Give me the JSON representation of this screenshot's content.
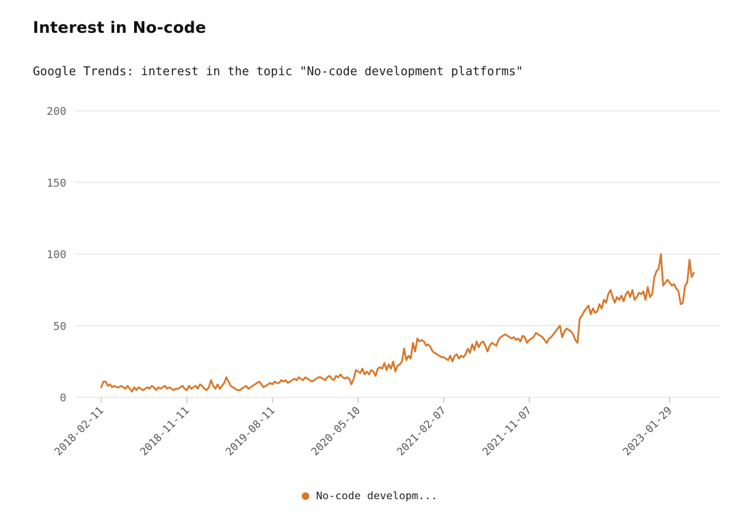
{
  "title": "Interest in No-code",
  "subtitle": "Google Trends: interest in the topic \"No-code development platforms\"",
  "legend": {
    "label": "No-code developm..."
  },
  "colors": {
    "line": "#d97628",
    "grid": "#dcdcdc",
    "tick": "#666666"
  },
  "chart_data": {
    "type": "line",
    "title": "Interest in No-code",
    "subtitle": "Google Trends: interest in the topic \"No-code development platforms\"",
    "xlabel": "",
    "ylabel": "",
    "ylim": [
      0,
      200
    ],
    "yticks": [
      0,
      50,
      100,
      150,
      200
    ],
    "xticks": [
      "2018-02-11",
      "2018-11-11",
      "2019-08-11",
      "2020-05-10",
      "2021-02-07",
      "2021-11-07",
      "2023-01-29"
    ],
    "grid": true,
    "legend_position": "bottom",
    "series": [
      {
        "name": "No-code developm...",
        "x_start": "2018-02-11",
        "x_step_days": 7,
        "values": [
          7,
          11,
          11,
          8,
          9,
          7,
          8,
          7,
          7,
          8,
          7,
          6,
          8,
          6,
          4,
          7,
          5,
          7,
          6,
          5,
          6,
          7,
          6,
          8,
          7,
          5,
          7,
          6,
          7,
          8,
          6,
          7,
          6,
          5,
          6,
          6,
          7,
          8,
          6,
          5,
          8,
          6,
          7,
          8,
          6,
          9,
          8,
          6,
          5,
          7,
          12,
          8,
          6,
          9,
          6,
          8,
          10,
          14,
          11,
          8,
          7,
          6,
          5,
          5,
          6,
          7,
          8,
          6,
          7,
          8,
          9,
          10,
          11,
          9,
          7,
          8,
          9,
          10,
          9,
          11,
          10,
          10,
          12,
          11,
          12,
          10,
          11,
          12,
          13,
          12,
          14,
          13,
          12,
          14,
          13,
          12,
          11,
          12,
          13,
          14,
          14,
          13,
          12,
          14,
          15,
          13,
          12,
          15,
          14,
          16,
          14,
          13,
          14,
          13,
          9,
          13,
          19,
          18,
          17,
          20,
          16,
          18,
          16,
          19,
          18,
          15,
          20,
          21,
          20,
          24,
          19,
          23,
          20,
          25,
          18,
          22,
          23,
          25,
          34,
          26,
          29,
          27,
          38,
          32,
          41,
          39,
          40,
          39,
          36,
          37,
          35,
          32,
          31,
          30,
          29,
          28,
          28,
          27,
          26,
          29,
          25,
          29,
          30,
          27,
          29,
          28,
          30,
          34,
          31,
          37,
          33,
          39,
          35,
          38,
          39,
          36,
          32,
          36,
          38,
          37,
          36,
          40,
          42,
          43,
          44,
          43,
          42,
          41,
          42,
          40,
          41,
          39,
          43,
          42,
          38,
          40,
          41,
          42,
          45,
          44,
          43,
          42,
          40,
          38,
          41,
          42,
          44,
          46,
          48,
          50,
          42,
          46,
          48,
          47,
          46,
          44,
          40,
          38,
          55,
          57,
          60,
          62,
          64,
          58,
          62,
          59,
          60,
          65,
          62,
          68,
          66,
          72,
          75,
          70,
          66,
          70,
          68,
          71,
          67,
          72,
          74,
          70,
          75,
          68,
          70,
          73,
          72,
          74,
          68,
          77,
          70,
          72,
          84,
          88,
          90,
          100,
          78,
          80,
          82,
          80,
          78,
          79,
          76,
          74,
          65,
          66,
          78,
          80,
          96,
          84,
          87
        ]
      }
    ]
  }
}
